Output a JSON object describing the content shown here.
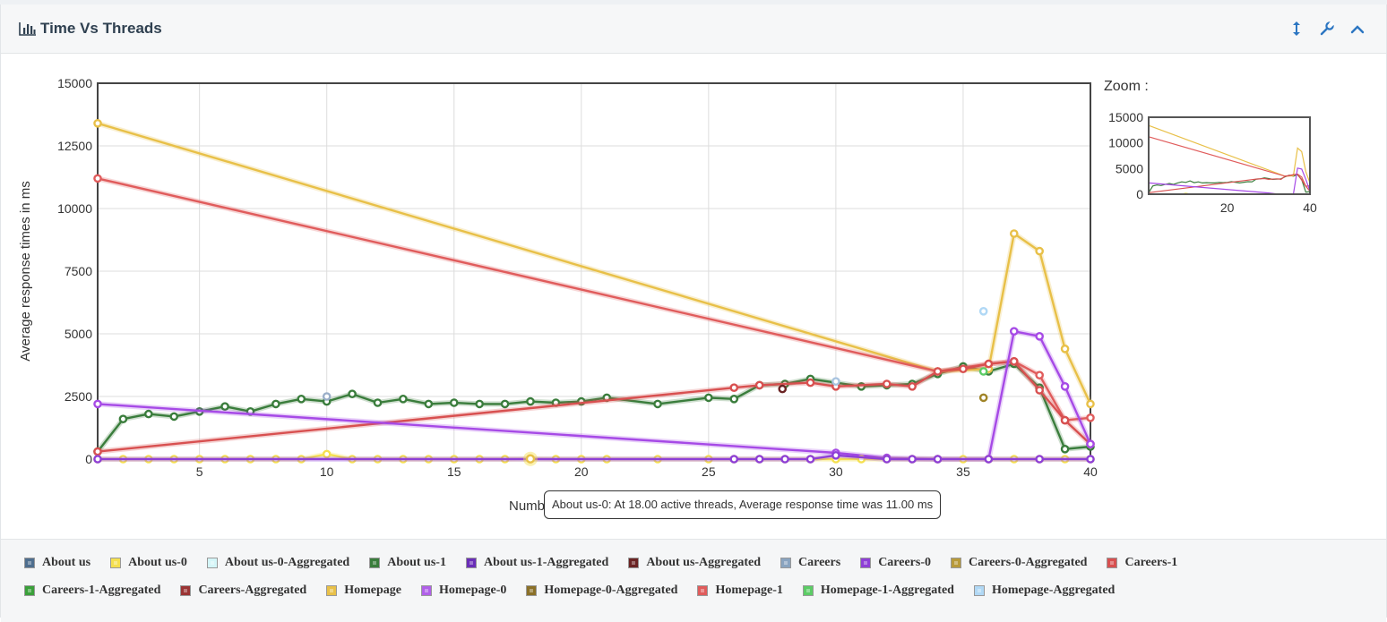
{
  "panel": {
    "title": "Time Vs Threads",
    "icons": [
      "bar-chart-icon",
      "resize-vertical-icon",
      "wrench-icon",
      "chevron-up-icon"
    ]
  },
  "chart_data": {
    "type": "line",
    "ylabel": "Average response times in ms",
    "xlabel": "Number of active threads",
    "xlim": [
      1,
      40
    ],
    "ylim": [
      0,
      15000
    ],
    "x_ticks": [
      5,
      10,
      15,
      20,
      25,
      30,
      35,
      40
    ],
    "y_ticks": [
      0,
      2500,
      5000,
      7500,
      10000,
      12500,
      15000
    ],
    "grid": true,
    "series": [
      {
        "name": "About us-1",
        "color": "#3a7d3c",
        "points": [
          [
            1,
            300
          ],
          [
            2,
            1600
          ],
          [
            3,
            1800
          ],
          [
            4,
            1700
          ],
          [
            5,
            1900
          ],
          [
            6,
            2100
          ],
          [
            7,
            1900
          ],
          [
            8,
            2200
          ],
          [
            9,
            2400
          ],
          [
            10,
            2300
          ],
          [
            11,
            2600
          ],
          [
            12,
            2250
          ],
          [
            13,
            2400
          ],
          [
            14,
            2200
          ],
          [
            15,
            2250
          ],
          [
            16,
            2200
          ],
          [
            17,
            2200
          ],
          [
            18,
            2300
          ],
          [
            19,
            2250
          ],
          [
            20,
            2300
          ],
          [
            21,
            2450
          ],
          [
            23,
            2200
          ],
          [
            25,
            2450
          ],
          [
            26,
            2400
          ],
          [
            27,
            2950
          ],
          [
            28,
            3000
          ],
          [
            29,
            3200
          ],
          [
            30,
            3050
          ],
          [
            31,
            2900
          ],
          [
            32,
            2950
          ],
          [
            33,
            3000
          ],
          [
            34,
            3400
          ],
          [
            35,
            3700
          ],
          [
            36,
            3500
          ],
          [
            37,
            3800
          ],
          [
            38,
            2850
          ],
          [
            39,
            400
          ],
          [
            40,
            500
          ]
        ]
      },
      {
        "name": "Homepage",
        "color": "#e8c048",
        "points": [
          [
            1,
            13400
          ],
          [
            34,
            3500
          ],
          [
            36,
            3600
          ],
          [
            37,
            9000
          ],
          [
            38,
            8300
          ],
          [
            39,
            4400
          ],
          [
            40,
            2200
          ]
        ]
      },
      {
        "name": "Homepage-1",
        "color": "#e05c5c",
        "points": [
          [
            1,
            11200
          ],
          [
            34,
            3500
          ],
          [
            36,
            3800
          ],
          [
            37,
            3900
          ],
          [
            38,
            3350
          ],
          [
            39,
            1550
          ],
          [
            40,
            1650
          ]
        ]
      },
      {
        "name": "Careers-1",
        "color": "#d85050",
        "points": [
          [
            1,
            300
          ],
          [
            26,
            2850
          ],
          [
            27,
            2950
          ],
          [
            29,
            3050
          ],
          [
            30,
            2900
          ],
          [
            32,
            3000
          ],
          [
            33,
            2900
          ],
          [
            34,
            3500
          ],
          [
            35,
            3600
          ],
          [
            36,
            3800
          ],
          [
            37,
            3900
          ],
          [
            38,
            2750
          ],
          [
            39,
            1550
          ],
          [
            40,
            600
          ]
        ]
      },
      {
        "name": "Homepage-0",
        "color": "#a64ae6",
        "points": [
          [
            1,
            2200
          ],
          [
            30,
            250
          ],
          [
            32,
            50
          ],
          [
            34,
            0
          ],
          [
            36,
            0
          ],
          [
            37,
            5100
          ],
          [
            38,
            4900
          ],
          [
            39,
            2900
          ],
          [
            40,
            600
          ]
        ]
      },
      {
        "name": "About us-0",
        "color": "#f5e050",
        "points": [
          [
            1,
            0
          ],
          [
            2,
            0
          ],
          [
            3,
            0
          ],
          [
            4,
            0
          ],
          [
            5,
            0
          ],
          [
            6,
            0
          ],
          [
            7,
            0
          ],
          [
            8,
            0
          ],
          [
            9,
            0
          ],
          [
            10,
            200
          ],
          [
            11,
            0
          ],
          [
            12,
            0
          ],
          [
            13,
            0
          ],
          [
            14,
            0
          ],
          [
            15,
            0
          ],
          [
            16,
            0
          ],
          [
            17,
            0
          ],
          [
            18,
            11
          ],
          [
            19,
            0
          ],
          [
            20,
            0
          ],
          [
            21,
            0
          ],
          [
            23,
            0
          ],
          [
            25,
            0
          ],
          [
            26,
            0
          ],
          [
            27,
            0
          ],
          [
            28,
            0
          ],
          [
            29,
            0
          ],
          [
            30,
            0
          ],
          [
            31,
            0
          ],
          [
            32,
            0
          ],
          [
            33,
            0
          ],
          [
            34,
            0
          ],
          [
            35,
            0
          ],
          [
            36,
            0
          ],
          [
            37,
            0
          ],
          [
            38,
            0
          ],
          [
            39,
            0
          ],
          [
            40,
            0
          ]
        ]
      },
      {
        "name": "Careers-0",
        "color": "#8e3fd6",
        "points": [
          [
            1,
            0
          ],
          [
            26,
            0
          ],
          [
            27,
            0
          ],
          [
            28,
            0
          ],
          [
            29,
            0
          ],
          [
            30,
            150
          ],
          [
            32,
            0
          ],
          [
            33,
            0
          ],
          [
            34,
            0
          ],
          [
            36,
            0
          ],
          [
            38,
            0
          ],
          [
            40,
            0
          ]
        ]
      }
    ],
    "extra_points": [
      {
        "name": "About us",
        "color": "#9aaec8",
        "x": 10,
        "y": 2500
      },
      {
        "name": "Careers",
        "color": "#a9c4e0",
        "x": 30,
        "y": 3100
      },
      {
        "name": "Homepage-Aggregated",
        "color": "#b0d8f5",
        "x": 35.8,
        "y": 5900
      },
      {
        "name": "Homepage-1-Aggregated",
        "color": "#5ccc66",
        "x": 35.8,
        "y": 3500
      },
      {
        "name": "Careers-0-Aggregated",
        "color": "#a08428",
        "x": 35.8,
        "y": 2450
      },
      {
        "name": "About us-Aggregated",
        "color": "#6b2424",
        "x": 27.9,
        "y": 2800
      }
    ],
    "tooltip": "About us-0: At 18.00 active threads, Average response time was 11.00 ms",
    "zoom": {
      "label": "Zoom :",
      "y_ticks": [
        0,
        5000,
        10000,
        15000
      ],
      "x_ticks": [
        20,
        40
      ]
    }
  },
  "legend": [
    [
      {
        "label": "About us",
        "color": "#4e6e8e"
      },
      {
        "label": "About us-0",
        "color": "#f5e050"
      },
      {
        "label": "About us-0-Aggregated",
        "color": "#d4f6f8"
      },
      {
        "label": "About us-1",
        "color": "#3a7d3c"
      },
      {
        "label": "About us-1-Aggregated",
        "color": "#6a2eb8"
      },
      {
        "label": "About us-Aggregated",
        "color": "#6b2424"
      },
      {
        "label": "Careers",
        "color": "#8aa4c0"
      },
      {
        "label": "Careers-0",
        "color": "#8e3fd6"
      },
      {
        "label": "Careers-0-Aggregated",
        "color": "#b89a3a"
      },
      {
        "label": "Careers-1",
        "color": "#d85050"
      }
    ],
    [
      {
        "label": "Careers-1-Aggregated",
        "color": "#3aa03a"
      },
      {
        "label": "Careers-Aggregated",
        "color": "#9a3434"
      },
      {
        "label": "Homepage",
        "color": "#e8c048"
      },
      {
        "label": "Homepage-0",
        "color": "#b060e8"
      },
      {
        "label": "Homepage-0-Aggregated",
        "color": "#8a7028"
      },
      {
        "label": "Homepage-1",
        "color": "#e05c5c"
      },
      {
        "label": "Homepage-1-Aggregated",
        "color": "#5ccc66"
      },
      {
        "label": "Homepage-Aggregated",
        "color": "#b0d8f5"
      }
    ]
  ]
}
